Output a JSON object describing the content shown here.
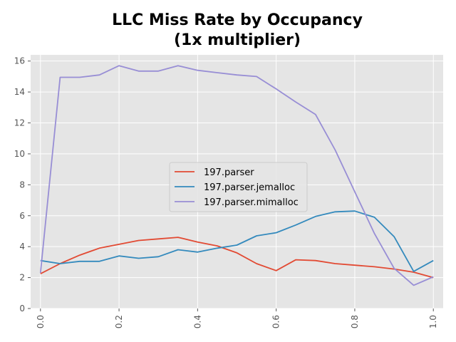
{
  "chart_data": {
    "type": "line",
    "title": "LLC Miss Rate by Occupancy",
    "subtitle": "(1x multiplier)",
    "xlabel": "",
    "ylabel": "",
    "xlim": [
      -0.025,
      1.025
    ],
    "ylim": [
      0,
      16.4
    ],
    "xticks": [
      "0.0",
      "0.2",
      "0.4",
      "0.6",
      "0.8",
      "1.0"
    ],
    "yticks": [
      "0",
      "2",
      "4",
      "6",
      "8",
      "10",
      "12",
      "14",
      "16"
    ],
    "grid": true,
    "legend_position": "center-right",
    "x": [
      0.0,
      0.05,
      0.1,
      0.15,
      0.2,
      0.25,
      0.3,
      0.35,
      0.4,
      0.45,
      0.5,
      0.55,
      0.6,
      0.65,
      0.7,
      0.75,
      0.8,
      0.85,
      0.9,
      0.95,
      1.0
    ],
    "series": [
      {
        "name": "197.parser",
        "color": "#E24A33",
        "values": [
          2.25,
          2.9,
          3.45,
          3.9,
          4.15,
          4.4,
          4.5,
          4.6,
          4.3,
          4.05,
          3.6,
          2.9,
          2.45,
          3.15,
          3.1,
          2.9,
          2.8,
          2.7,
          2.55,
          2.35,
          2.0
        ]
      },
      {
        "name": "197.parser.jemalloc",
        "color": "#348ABD",
        "values": [
          3.1,
          2.9,
          3.05,
          3.05,
          3.4,
          3.25,
          3.35,
          3.8,
          3.65,
          3.9,
          4.1,
          4.7,
          4.9,
          5.4,
          5.95,
          6.25,
          6.3,
          5.9,
          4.65,
          2.4,
          3.1
        ]
      },
      {
        "name": "197.parser.mimalloc",
        "color": "#988ED5",
        "values": [
          2.3,
          14.95,
          14.95,
          15.1,
          15.7,
          15.35,
          15.35,
          15.7,
          15.4,
          15.25,
          15.1,
          15.0,
          14.2,
          13.35,
          12.55,
          10.25,
          7.55,
          4.85,
          2.6,
          1.5,
          2.05
        ]
      }
    ]
  }
}
